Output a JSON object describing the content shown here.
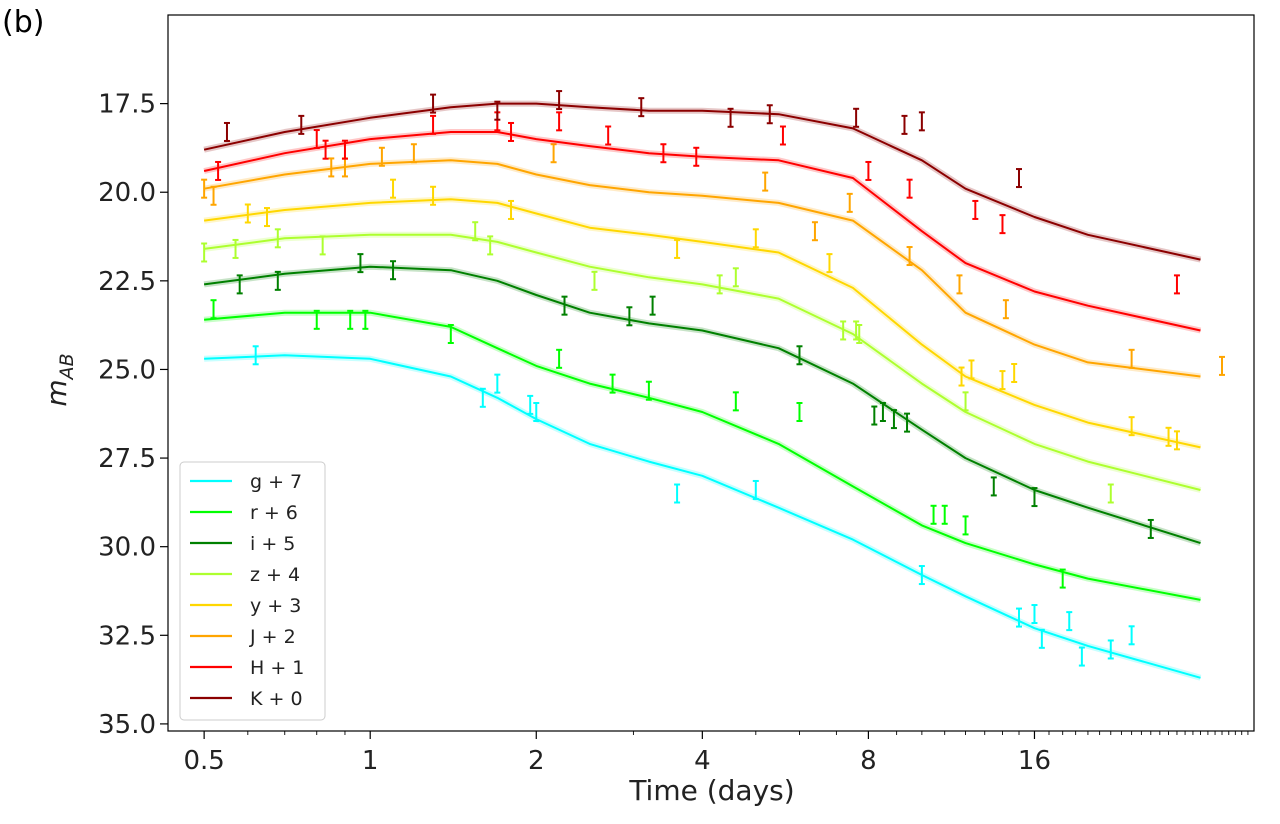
{
  "chart_data": {
    "type": "line",
    "panel_label": "(b)",
    "xlabel": "Time (days)",
    "ylabel_main": "m",
    "ylabel_sub": "AB",
    "x_scale": "log2",
    "xlim": [
      0.43,
      40
    ],
    "ylim": [
      35.2,
      15.0
    ],
    "y_inverted": true,
    "x_ticks": [
      0.5,
      1,
      2,
      4,
      8,
      16
    ],
    "x_tick_labels": [
      "0.5",
      "1",
      "2",
      "4",
      "8",
      "16"
    ],
    "y_ticks": [
      17.5,
      20.0,
      22.5,
      25.0,
      27.5,
      30.0,
      32.5,
      35.0
    ],
    "y_tick_labels": [
      "17.5",
      "20.0",
      "22.5",
      "25.0",
      "27.5",
      "30.0",
      "32.5",
      "35.0"
    ],
    "legend_position": "lower-left",
    "model_x": [
      0.5,
      0.7,
      1.0,
      1.4,
      1.7,
      2.0,
      2.5,
      3.2,
      4.0,
      5.5,
      7.5,
      10.0,
      12.0,
      16.0,
      20.0,
      32.0
    ],
    "series": [
      {
        "name": "g + 7",
        "color": "#00ffff",
        "model": [
          24.7,
          24.6,
          24.7,
          25.2,
          25.8,
          26.4,
          27.1,
          27.6,
          28.0,
          28.9,
          29.8,
          30.8,
          31.4,
          32.3,
          32.8,
          33.7
        ],
        "points": [
          [
            0.62,
            24.6
          ],
          [
            1.6,
            25.8
          ],
          [
            1.7,
            25.4
          ],
          [
            1.95,
            26.0
          ],
          [
            2.0,
            26.2
          ],
          [
            3.6,
            28.5
          ],
          [
            5.0,
            28.4
          ],
          [
            10.0,
            30.8
          ],
          [
            15.0,
            32.0
          ],
          [
            16.0,
            31.9
          ],
          [
            16.5,
            32.6
          ],
          [
            18.5,
            32.1
          ],
          [
            19.5,
            33.1
          ],
          [
            22.0,
            32.9
          ],
          [
            24.0,
            32.5
          ]
        ]
      },
      {
        "name": "r + 6",
        "color": "#00ff00",
        "model": [
          23.6,
          23.4,
          23.4,
          23.8,
          24.4,
          24.9,
          25.4,
          25.8,
          26.2,
          27.1,
          28.3,
          29.4,
          29.9,
          30.5,
          30.9,
          31.5
        ],
        "points": [
          [
            0.52,
            23.3
          ],
          [
            0.8,
            23.6
          ],
          [
            0.92,
            23.6
          ],
          [
            0.98,
            23.6
          ],
          [
            1.4,
            24.0
          ],
          [
            2.2,
            24.7
          ],
          [
            2.75,
            25.4
          ],
          [
            3.2,
            25.6
          ],
          [
            4.6,
            25.9
          ],
          [
            6.0,
            26.2
          ],
          [
            10.5,
            29.1
          ],
          [
            11.0,
            29.1
          ],
          [
            12.0,
            29.4
          ],
          [
            18.0,
            30.9
          ]
        ]
      },
      {
        "name": "i + 5",
        "color": "#008000",
        "model": [
          22.6,
          22.3,
          22.1,
          22.2,
          22.5,
          22.9,
          23.4,
          23.7,
          23.9,
          24.4,
          25.4,
          26.7,
          27.5,
          28.4,
          28.9,
          29.9
        ],
        "points": [
          [
            0.58,
            22.6
          ],
          [
            0.68,
            22.5
          ],
          [
            0.96,
            22.0
          ],
          [
            1.1,
            22.2
          ],
          [
            2.25,
            23.2
          ],
          [
            2.95,
            23.5
          ],
          [
            3.25,
            23.2
          ],
          [
            6.0,
            24.6
          ],
          [
            8.2,
            26.3
          ],
          [
            8.5,
            26.2
          ],
          [
            8.9,
            26.4
          ],
          [
            9.4,
            26.5
          ],
          [
            13.5,
            28.3
          ],
          [
            16.0,
            28.6
          ],
          [
            26.0,
            29.5
          ]
        ]
      },
      {
        "name": "z + 4",
        "color": "#adff2f",
        "model": [
          21.6,
          21.3,
          21.2,
          21.2,
          21.4,
          21.7,
          22.1,
          22.4,
          22.6,
          23.0,
          24.0,
          25.4,
          26.2,
          27.1,
          27.6,
          28.4
        ],
        "points": [
          [
            0.5,
            21.7
          ],
          [
            0.57,
            21.6
          ],
          [
            0.68,
            21.3
          ],
          [
            0.82,
            21.5
          ],
          [
            1.55,
            21.1
          ],
          [
            1.65,
            21.5
          ],
          [
            2.55,
            22.5
          ],
          [
            4.3,
            22.6
          ],
          [
            4.6,
            22.4
          ],
          [
            7.2,
            23.9
          ],
          [
            7.6,
            23.9
          ],
          [
            7.7,
            24.0
          ],
          [
            12.0,
            25.9
          ],
          [
            22.0,
            28.5
          ]
        ]
      },
      {
        "name": "y + 3",
        "color": "#ffd700",
        "model": [
          20.8,
          20.5,
          20.3,
          20.2,
          20.3,
          20.6,
          21.0,
          21.2,
          21.4,
          21.7,
          22.7,
          24.3,
          25.2,
          26.0,
          26.5,
          27.2
        ],
        "points": [
          [
            0.6,
            20.6
          ],
          [
            0.65,
            20.7
          ],
          [
            1.1,
            19.9
          ],
          [
            1.3,
            20.1
          ],
          [
            1.8,
            20.5
          ],
          [
            3.6,
            21.6
          ],
          [
            5.0,
            21.3
          ],
          [
            6.8,
            22.0
          ],
          [
            11.8,
            25.2
          ],
          [
            12.3,
            25.0
          ],
          [
            14.0,
            25.3
          ],
          [
            14.7,
            25.1
          ],
          [
            24.0,
            26.6
          ],
          [
            28.0,
            26.9
          ],
          [
            29.0,
            27.0
          ]
        ]
      },
      {
        "name": "J + 2",
        "color": "#ffa500",
        "model": [
          19.9,
          19.5,
          19.2,
          19.1,
          19.2,
          19.5,
          19.8,
          20.0,
          20.1,
          20.3,
          20.8,
          22.2,
          23.4,
          24.3,
          24.8,
          25.2
        ],
        "points": [
          [
            0.5,
            19.9
          ],
          [
            0.52,
            20.1
          ],
          [
            0.85,
            19.3
          ],
          [
            0.9,
            19.3
          ],
          [
            1.05,
            19.0
          ],
          [
            1.2,
            18.9
          ],
          [
            2.15,
            18.9
          ],
          [
            5.2,
            19.7
          ],
          [
            6.4,
            21.1
          ],
          [
            7.4,
            20.3
          ],
          [
            9.5,
            21.8
          ],
          [
            11.7,
            22.6
          ],
          [
            14.2,
            23.3
          ],
          [
            24.0,
            24.7
          ],
          [
            35.0,
            24.9
          ]
        ]
      },
      {
        "name": "H + 1",
        "color": "#ff0000",
        "model": [
          19.4,
          18.9,
          18.5,
          18.3,
          18.3,
          18.5,
          18.7,
          18.9,
          19.0,
          19.1,
          19.6,
          21.1,
          22.0,
          22.8,
          23.2,
          23.9
        ],
        "points": [
          [
            0.53,
            19.4
          ],
          [
            0.8,
            18.5
          ],
          [
            0.83,
            18.8
          ],
          [
            0.9,
            18.8
          ],
          [
            1.3,
            18.1
          ],
          [
            1.7,
            18.0
          ],
          [
            1.8,
            18.3
          ],
          [
            2.2,
            18.0
          ],
          [
            2.7,
            18.4
          ],
          [
            3.4,
            18.9
          ],
          [
            3.9,
            19.0
          ],
          [
            5.6,
            18.4
          ],
          [
            8.0,
            19.4
          ],
          [
            9.5,
            19.9
          ],
          [
            12.5,
            20.5
          ],
          [
            14.0,
            20.9
          ],
          [
            29.0,
            22.6
          ]
        ]
      },
      {
        "name": "K + 0",
        "color": "#8b0000",
        "model": [
          18.8,
          18.3,
          17.9,
          17.6,
          17.5,
          17.5,
          17.6,
          17.7,
          17.7,
          17.8,
          18.2,
          19.1,
          19.9,
          20.7,
          21.2,
          21.9
        ],
        "points": [
          [
            0.55,
            18.3
          ],
          [
            0.75,
            18.1
          ],
          [
            1.3,
            17.5
          ],
          [
            1.7,
            17.7
          ],
          [
            2.2,
            17.4
          ],
          [
            3.1,
            17.6
          ],
          [
            4.5,
            17.9
          ],
          [
            5.3,
            17.8
          ],
          [
            7.6,
            17.9
          ],
          [
            9.3,
            18.1
          ],
          [
            10.0,
            18.0
          ],
          [
            15.0,
            19.6
          ]
        ]
      }
    ]
  }
}
